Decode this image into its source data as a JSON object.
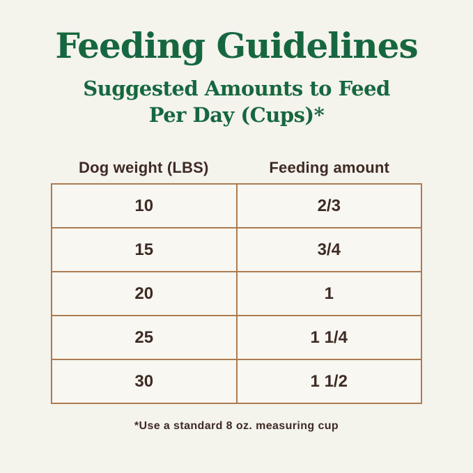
{
  "page": {
    "title": "Feeding Guidelines",
    "subtitle_line1": "Suggested Amounts to Feed",
    "subtitle_line2": "Per Day (Cups)*",
    "footnote": "*Use a standard 8 oz. measuring cup"
  },
  "table": {
    "columns": [
      "Dog weight (LBS)",
      "Feeding amount"
    ],
    "rows": [
      {
        "weight": "10",
        "amount": "2/3"
      },
      {
        "weight": "15",
        "amount": "3/4"
      },
      {
        "weight": "20",
        "amount": "1"
      },
      {
        "weight": "25",
        "amount": "1 1/4"
      },
      {
        "weight": "30",
        "amount": "1 1/2"
      }
    ]
  },
  "colors": {
    "heading_green": "#16673f",
    "text_brown": "#3e2b24",
    "table_border_tan": "#ac7b50",
    "page_background": "#f4f3ec",
    "cell_background": "#f8f7f1"
  },
  "chart_data": {
    "type": "table",
    "title": "Feeding Guidelines",
    "subtitle": "Suggested Amounts to Feed Per Day (Cups)*",
    "columns": [
      "Dog weight (LBS)",
      "Feeding amount"
    ],
    "rows": [
      [
        "10",
        "2/3"
      ],
      [
        "15",
        "3/4"
      ],
      [
        "20",
        "1"
      ],
      [
        "25",
        "1 1/4"
      ],
      [
        "30",
        "1 1/2"
      ]
    ],
    "footnote": "*Use a standard 8 oz. measuring cup",
    "legend": "none",
    "grid": "table borders on"
  }
}
